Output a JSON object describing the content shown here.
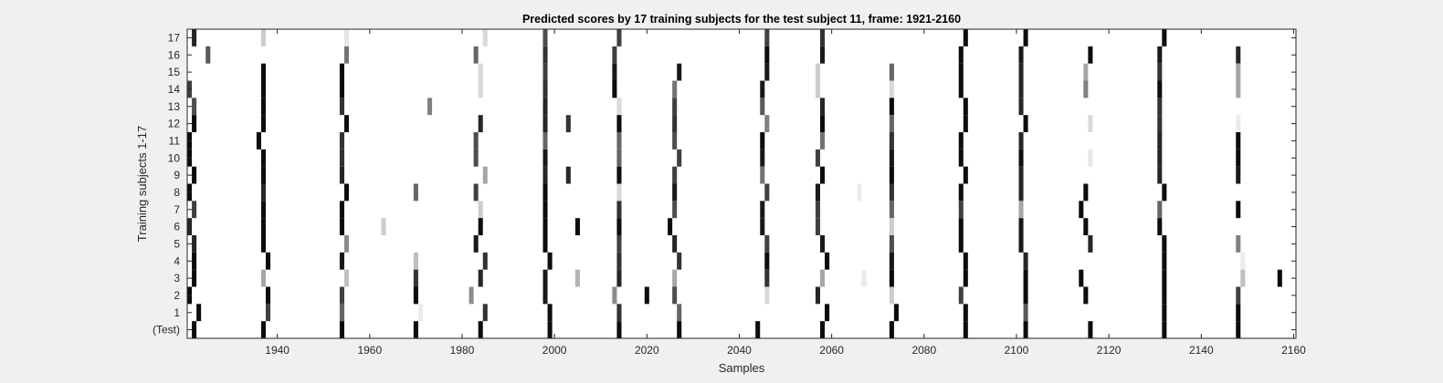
{
  "chart_data": {
    "type": "heatmap",
    "title": "Predicted scores by 17 training subjects for the test subject 11, frame: 1921-2160",
    "xlabel": "Samples",
    "ylabel": "Training subjects 1-17",
    "xlim": [
      1920.5,
      2160.5
    ],
    "x_ticks": [
      "1940",
      "1960",
      "1980",
      "2000",
      "2020",
      "2040",
      "2060",
      "2080",
      "2100",
      "2120",
      "2140",
      "2160"
    ],
    "x_tick_values": [
      1940,
      1960,
      1980,
      2000,
      2020,
      2040,
      2060,
      2080,
      2100,
      2120,
      2140,
      2160
    ],
    "rows": [
      "17",
      "16",
      "15",
      "14",
      "13",
      "12",
      "11",
      "10",
      "9",
      "8",
      "7",
      "6",
      "5",
      "4",
      "3",
      "2",
      "1",
      "(Test)"
    ],
    "grid": false,
    "colormap": "gray (0 = white, 1 = black)",
    "colors": {
      "background": "#f0f0f0",
      "axes": "#ffffff",
      "frame": "#262626",
      "high": "#000000",
      "low": "#ffffff"
    },
    "cells": [
      {
        "row": "17",
        "marks": [
          [
            1922,
            0.85
          ],
          [
            1937,
            0.2
          ],
          [
            1955,
            0.1
          ],
          [
            1985,
            0.15
          ],
          [
            1998,
            0.7
          ],
          [
            2014,
            0.75
          ],
          [
            2046,
            0.75
          ],
          [
            2058,
            0.8
          ],
          [
            2089,
            0.95
          ],
          [
            2102,
            0.95
          ],
          [
            2132,
            0.95
          ]
        ]
      },
      {
        "row": "16",
        "marks": [
          [
            1925,
            0.65
          ],
          [
            1955,
            0.55
          ],
          [
            1983,
            0.6
          ],
          [
            1998,
            0.8
          ],
          [
            2013,
            0.75
          ],
          [
            2046,
            0.95
          ],
          [
            2058,
            0.9
          ],
          [
            2088,
            0.95
          ],
          [
            2101,
            0.9
          ],
          [
            2116,
            0.95
          ],
          [
            2131,
            0.9
          ],
          [
            2148,
            0.85
          ]
        ]
      },
      {
        "row": "15",
        "marks": [
          [
            1937,
            0.95
          ],
          [
            1954,
            0.95
          ],
          [
            1984,
            0.15
          ],
          [
            1998,
            0.75
          ],
          [
            2013,
            0.9
          ],
          [
            2027,
            0.9
          ],
          [
            2046,
            0.9
          ],
          [
            2057,
            0.2
          ],
          [
            2073,
            0.6
          ],
          [
            2088,
            0.95
          ],
          [
            2101,
            0.85
          ],
          [
            2115,
            0.35
          ],
          [
            2131,
            0.8
          ],
          [
            2148,
            0.35
          ]
        ]
      },
      {
        "row": "14",
        "marks": [
          [
            1921,
            0.75
          ],
          [
            1937,
            0.95
          ],
          [
            1954,
            0.95
          ],
          [
            1984,
            0.15
          ],
          [
            1998,
            0.8
          ],
          [
            2013,
            0.95
          ],
          [
            2026,
            0.55
          ],
          [
            2045,
            0.9
          ],
          [
            2057,
            0.2
          ],
          [
            2073,
            0.15
          ],
          [
            2088,
            0.95
          ],
          [
            2101,
            0.85
          ],
          [
            2115,
            0.5
          ],
          [
            2131,
            0.95
          ],
          [
            2148,
            0.35
          ]
        ]
      },
      {
        "row": "13",
        "marks": [
          [
            1922,
            0.7
          ],
          [
            1937,
            0.95
          ],
          [
            1954,
            0.8
          ],
          [
            1973,
            0.5
          ],
          [
            1998,
            0.85
          ],
          [
            2014,
            0.15
          ],
          [
            2026,
            0.75
          ],
          [
            2045,
            0.65
          ],
          [
            2058,
            0.85
          ],
          [
            2073,
            0.95
          ],
          [
            2089,
            0.95
          ],
          [
            2101,
            0.85
          ],
          [
            2131,
            0.8
          ]
        ]
      },
      {
        "row": "12",
        "marks": [
          [
            1922,
            0.95
          ],
          [
            1937,
            0.95
          ],
          [
            1955,
            0.95
          ],
          [
            1984,
            0.85
          ],
          [
            1998,
            0.85
          ],
          [
            2003,
            0.8
          ],
          [
            2014,
            0.95
          ],
          [
            2026,
            0.8
          ],
          [
            2046,
            0.5
          ],
          [
            2058,
            0.95
          ],
          [
            2073,
            0.6
          ],
          [
            2089,
            0.95
          ],
          [
            2102,
            0.95
          ],
          [
            2116,
            0.15
          ],
          [
            2131,
            0.8
          ],
          [
            2148,
            0.08
          ]
        ]
      },
      {
        "row": "11",
        "marks": [
          [
            1921,
            0.95
          ],
          [
            1936,
            0.95
          ],
          [
            1954,
            0.8
          ],
          [
            1983,
            0.7
          ],
          [
            1998,
            0.6
          ],
          [
            2014,
            0.6
          ],
          [
            2026,
            0.7
          ],
          [
            2045,
            0.95
          ],
          [
            2058,
            0.55
          ],
          [
            2073,
            0.8
          ],
          [
            2088,
            0.95
          ],
          [
            2101,
            0.85
          ],
          [
            2131,
            0.85
          ],
          [
            2148,
            0.95
          ]
        ]
      },
      {
        "row": "10",
        "marks": [
          [
            1921,
            0.95
          ],
          [
            1937,
            0.95
          ],
          [
            1954,
            0.8
          ],
          [
            1983,
            0.7
          ],
          [
            1998,
            0.9
          ],
          [
            2014,
            0.6
          ],
          [
            2027,
            0.75
          ],
          [
            2045,
            0.9
          ],
          [
            2057,
            0.75
          ],
          [
            2073,
            0.9
          ],
          [
            2088,
            0.95
          ],
          [
            2101,
            0.95
          ],
          [
            2116,
            0.1
          ],
          [
            2131,
            0.85
          ],
          [
            2148,
            0.95
          ]
        ]
      },
      {
        "row": "9",
        "marks": [
          [
            1922,
            0.95
          ],
          [
            1937,
            0.95
          ],
          [
            1954,
            0.85
          ],
          [
            1985,
            0.35
          ],
          [
            1998,
            0.85
          ],
          [
            2003,
            0.85
          ],
          [
            2014,
            0.95
          ],
          [
            2026,
            0.75
          ],
          [
            2045,
            0.55
          ],
          [
            2058,
            0.95
          ],
          [
            2073,
            0.95
          ],
          [
            2089,
            0.95
          ],
          [
            2101,
            0.85
          ],
          [
            2131,
            0.85
          ],
          [
            2148,
            0.9
          ]
        ]
      },
      {
        "row": "8",
        "marks": [
          [
            1921,
            0.95
          ],
          [
            1937,
            0.85
          ],
          [
            1955,
            0.95
          ],
          [
            1970,
            0.6
          ],
          [
            1983,
            0.75
          ],
          [
            1998,
            0.95
          ],
          [
            2014,
            0.15
          ],
          [
            2026,
            0.9
          ],
          [
            2046,
            0.75
          ],
          [
            2057,
            0.9
          ],
          [
            2066,
            0.08
          ],
          [
            2073,
            0.8
          ],
          [
            2088,
            0.95
          ],
          [
            2101,
            0.85
          ],
          [
            2115,
            0.95
          ],
          [
            2132,
            0.95
          ]
        ]
      },
      {
        "row": "7",
        "marks": [
          [
            1922,
            0.75
          ],
          [
            1937,
            0.95
          ],
          [
            1954,
            0.95
          ],
          [
            1984,
            0.2
          ],
          [
            1998,
            0.95
          ],
          [
            2014,
            0.8
          ],
          [
            2026,
            0.7
          ],
          [
            2045,
            0.9
          ],
          [
            2057,
            0.75
          ],
          [
            2073,
            0.6
          ],
          [
            2088,
            0.75
          ],
          [
            2101,
            0.35
          ],
          [
            2114,
            0.95
          ],
          [
            2131,
            0.6
          ],
          [
            2148,
            0.95
          ]
        ]
      },
      {
        "row": "6",
        "marks": [
          [
            1921,
            0.85
          ],
          [
            1937,
            0.95
          ],
          [
            1954,
            0.95
          ],
          [
            1963,
            0.2
          ],
          [
            1984,
            0.95
          ],
          [
            1998,
            0.95
          ],
          [
            2005,
            0.95
          ],
          [
            2014,
            0.95
          ],
          [
            2025,
            0.95
          ],
          [
            2045,
            0.9
          ],
          [
            2057,
            0.75
          ],
          [
            2073,
            0.2
          ],
          [
            2088,
            0.95
          ],
          [
            2101,
            0.9
          ],
          [
            2115,
            0.95
          ],
          [
            2131,
            0.95
          ]
        ]
      },
      {
        "row": "5",
        "marks": [
          [
            1922,
            0.85
          ],
          [
            1937,
            0.95
          ],
          [
            1955,
            0.45
          ],
          [
            1983,
            0.9
          ],
          [
            1998,
            0.95
          ],
          [
            2014,
            0.75
          ],
          [
            2026,
            0.85
          ],
          [
            2046,
            0.75
          ],
          [
            2058,
            0.9
          ],
          [
            2073,
            0.7
          ],
          [
            2088,
            0.95
          ],
          [
            2101,
            0.9
          ],
          [
            2116,
            0.85
          ],
          [
            2132,
            0.95
          ],
          [
            2148,
            0.5
          ]
        ]
      },
      {
        "row": "4",
        "marks": [
          [
            1922,
            0.95
          ],
          [
            1938,
            0.95
          ],
          [
            1954,
            0.9
          ],
          [
            1970,
            0.25
          ],
          [
            1985,
            0.8
          ],
          [
            1999,
            0.95
          ],
          [
            2014,
            0.8
          ],
          [
            2027,
            0.8
          ],
          [
            2046,
            0.95
          ],
          [
            2059,
            0.95
          ],
          [
            2073,
            0.9
          ],
          [
            2089,
            0.95
          ],
          [
            2102,
            0.85
          ],
          [
            2132,
            0.95
          ],
          [
            2149,
            0.08
          ]
        ]
      },
      {
        "row": "3",
        "marks": [
          [
            1922,
            0.95
          ],
          [
            1937,
            0.35
          ],
          [
            1955,
            0.25
          ],
          [
            1970,
            0.8
          ],
          [
            1984,
            0.85
          ],
          [
            1998,
            0.9
          ],
          [
            2005,
            0.3
          ],
          [
            2014,
            0.85
          ],
          [
            2026,
            0.35
          ],
          [
            2046,
            0.8
          ],
          [
            2058,
            0.35
          ],
          [
            2067,
            0.08
          ],
          [
            2073,
            0.95
          ],
          [
            2089,
            0.95
          ],
          [
            2102,
            0.95
          ],
          [
            2114,
            0.95
          ],
          [
            2132,
            0.95
          ],
          [
            2149,
            0.25
          ],
          [
            2157,
            0.95
          ]
        ]
      },
      {
        "row": "2",
        "marks": [
          [
            1921,
            0.95
          ],
          [
            1938,
            0.95
          ],
          [
            1954,
            0.75
          ],
          [
            1970,
            0.95
          ],
          [
            1982,
            0.45
          ],
          [
            1998,
            0.9
          ],
          [
            2013,
            0.45
          ],
          [
            2020,
            0.95
          ],
          [
            2026,
            0.7
          ],
          [
            2046,
            0.15
          ],
          [
            2057,
            0.85
          ],
          [
            2073,
            0.2
          ],
          [
            2088,
            0.75
          ],
          [
            2102,
            0.95
          ],
          [
            2115,
            0.95
          ],
          [
            2132,
            0.95
          ],
          [
            2148,
            0.75
          ]
        ]
      },
      {
        "row": "1",
        "marks": [
          [
            1923,
            0.95
          ],
          [
            1938,
            0.75
          ],
          [
            1954,
            0.6
          ],
          [
            1971,
            0.08
          ],
          [
            1985,
            0.8
          ],
          [
            1999,
            0.95
          ],
          [
            2014,
            0.8
          ],
          [
            2027,
            0.6
          ],
          [
            2059,
            0.95
          ],
          [
            2074,
            0.95
          ],
          [
            2089,
            0.95
          ],
          [
            2102,
            0.65
          ],
          [
            2132,
            0.95
          ],
          [
            2148,
            0.95
          ]
        ]
      },
      {
        "row": "(Test)",
        "marks": [
          [
            1922,
            0.95
          ],
          [
            1937,
            0.95
          ],
          [
            1954,
            0.95
          ],
          [
            1970,
            0.95
          ],
          [
            1984,
            0.95
          ],
          [
            1999,
            0.95
          ],
          [
            2014,
            0.95
          ],
          [
            2027,
            0.95
          ],
          [
            2044,
            0.95
          ],
          [
            2058,
            0.95
          ],
          [
            2073,
            0.95
          ],
          [
            2089,
            0.95
          ],
          [
            2102,
            0.95
          ],
          [
            2116,
            0.95
          ],
          [
            2132,
            0.95
          ],
          [
            2148,
            0.95
          ]
        ]
      }
    ]
  }
}
